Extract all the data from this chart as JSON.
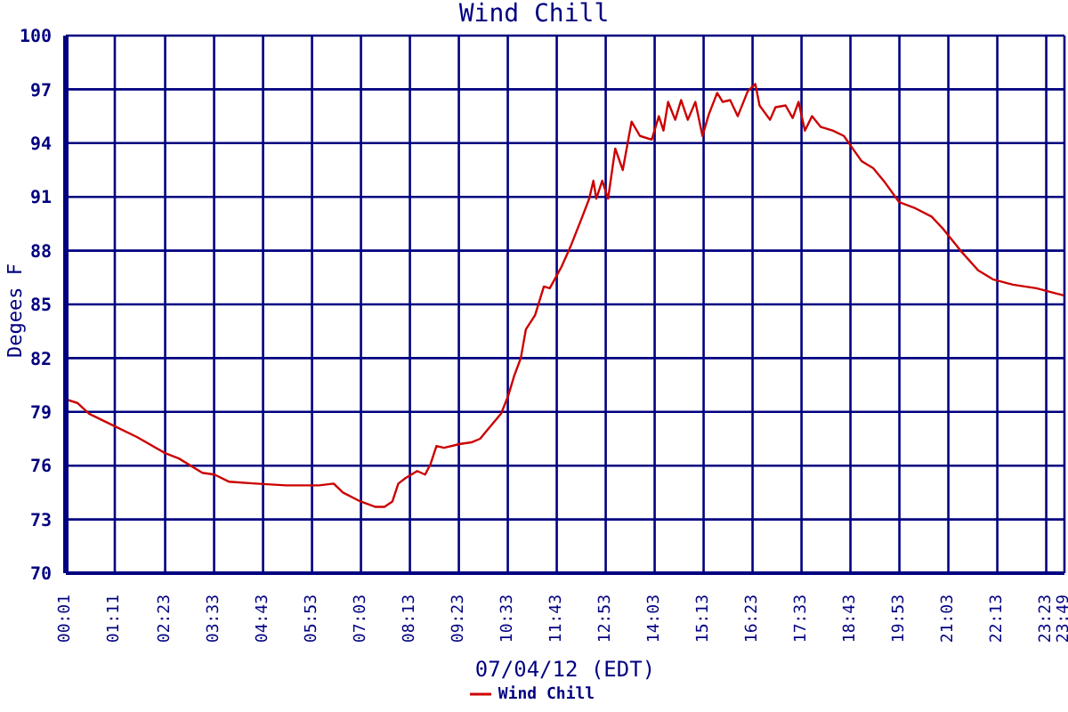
{
  "chart_data": {
    "type": "line",
    "title": "Wind Chill",
    "xlabel": "07/04/12 (EDT)",
    "ylabel": "Degees F",
    "x": [
      0.02,
      0.29,
      0.57,
      1.18,
      1.71,
      2.38,
      2.71,
      3.27,
      3.56,
      3.91,
      4.55,
      5.27,
      6.05,
      6.4,
      6.62,
      7.04,
      7.4,
      7.61,
      7.8,
      7.94,
      8.11,
      8.39,
      8.58,
      8.71,
      8.85,
      9.03,
      9.39,
      9.68,
      9.89,
      10.1,
      10.39,
      10.56,
      10.7,
      10.86,
      10.98,
      11.2,
      11.41,
      11.55,
      11.69,
      11.83,
      12.04,
      12.31,
      12.49,
      12.59,
      12.66,
      12.8,
      12.94,
      13.11,
      13.29,
      13.5,
      13.7,
      13.98,
      14.15,
      14.26,
      14.37,
      14.54,
      14.68,
      14.84,
      15.02,
      15.19,
      15.34,
      15.54,
      15.67,
      15.85,
      16.03,
      16.27,
      16.45,
      16.55,
      16.8,
      16.93,
      17.17,
      17.34,
      17.48,
      17.63,
      17.8,
      18.01,
      18.29,
      18.56,
      18.77,
      18.98,
      19.26,
      19.54,
      19.88,
      20.23,
      20.65,
      20.93,
      21.34,
      21.76,
      22.11,
      22.59,
      23.15,
      23.63,
      23.8
    ],
    "series": [
      {
        "name": "Wind Chill",
        "color": "#cc0000",
        "values": [
          79.7,
          79.5,
          78.9,
          78.2,
          77.6,
          76.7,
          76.4,
          75.6,
          75.5,
          75.1,
          75.0,
          74.9,
          74.9,
          75.0,
          74.5,
          74.0,
          73.7,
          73.7,
          74.0,
          75.0,
          75.3,
          75.7,
          75.5,
          76.1,
          77.1,
          77.0,
          77.2,
          77.3,
          77.5,
          78.1,
          78.9,
          79.9,
          81.0,
          82.0,
          83.6,
          84.4,
          86.0,
          85.9,
          86.5,
          87.1,
          88.2,
          89.8,
          90.9,
          91.9,
          90.9,
          91.9,
          90.9,
          93.7,
          92.5,
          95.2,
          94.4,
          94.2,
          95.5,
          94.7,
          96.3,
          95.3,
          96.4,
          95.3,
          96.3,
          94.4,
          95.6,
          96.8,
          96.3,
          96.4,
          95.5,
          96.9,
          97.3,
          96.1,
          95.3,
          96.0,
          96.1,
          95.4,
          96.3,
          94.7,
          95.5,
          94.9,
          94.7,
          94.4,
          93.7,
          93.0,
          92.6,
          91.8,
          90.7,
          90.4,
          89.9,
          89.2,
          88.0,
          86.9,
          86.4,
          86.1,
          85.9,
          85.6,
          85.5
        ]
      }
    ],
    "xlim": [
      0.0167,
      23.8167
    ],
    "xticks": [
      {
        "value": 0.0167,
        "label": "00:01"
      },
      {
        "value": 1.1833,
        "label": "01:11"
      },
      {
        "value": 2.3833,
        "label": "02:23"
      },
      {
        "value": 3.55,
        "label": "03:33"
      },
      {
        "value": 4.7167,
        "label": "04:43"
      },
      {
        "value": 5.8833,
        "label": "05:53"
      },
      {
        "value": 7.05,
        "label": "07:03"
      },
      {
        "value": 8.2167,
        "label": "08:13"
      },
      {
        "value": 9.3833,
        "label": "09:23"
      },
      {
        "value": 10.55,
        "label": "10:33"
      },
      {
        "value": 11.7167,
        "label": "11:43"
      },
      {
        "value": 12.8833,
        "label": "12:53"
      },
      {
        "value": 14.05,
        "label": "14:03"
      },
      {
        "value": 15.2167,
        "label": "15:13"
      },
      {
        "value": 16.3833,
        "label": "16:23"
      },
      {
        "value": 17.55,
        "label": "17:33"
      },
      {
        "value": 18.7167,
        "label": "18:43"
      },
      {
        "value": 19.8833,
        "label": "19:53"
      },
      {
        "value": 21.05,
        "label": "21:03"
      },
      {
        "value": 22.2167,
        "label": "22:13"
      },
      {
        "value": 23.3833,
        "label": "23:23"
      },
      {
        "value": 23.8167,
        "label": "23:49"
      }
    ],
    "ylim": [
      70,
      100
    ],
    "yticks": [
      70,
      73,
      76,
      79,
      82,
      85,
      88,
      91,
      94,
      97,
      100
    ],
    "grid": true,
    "legend": "bottom",
    "marker": "none",
    "line_style": "solid"
  }
}
